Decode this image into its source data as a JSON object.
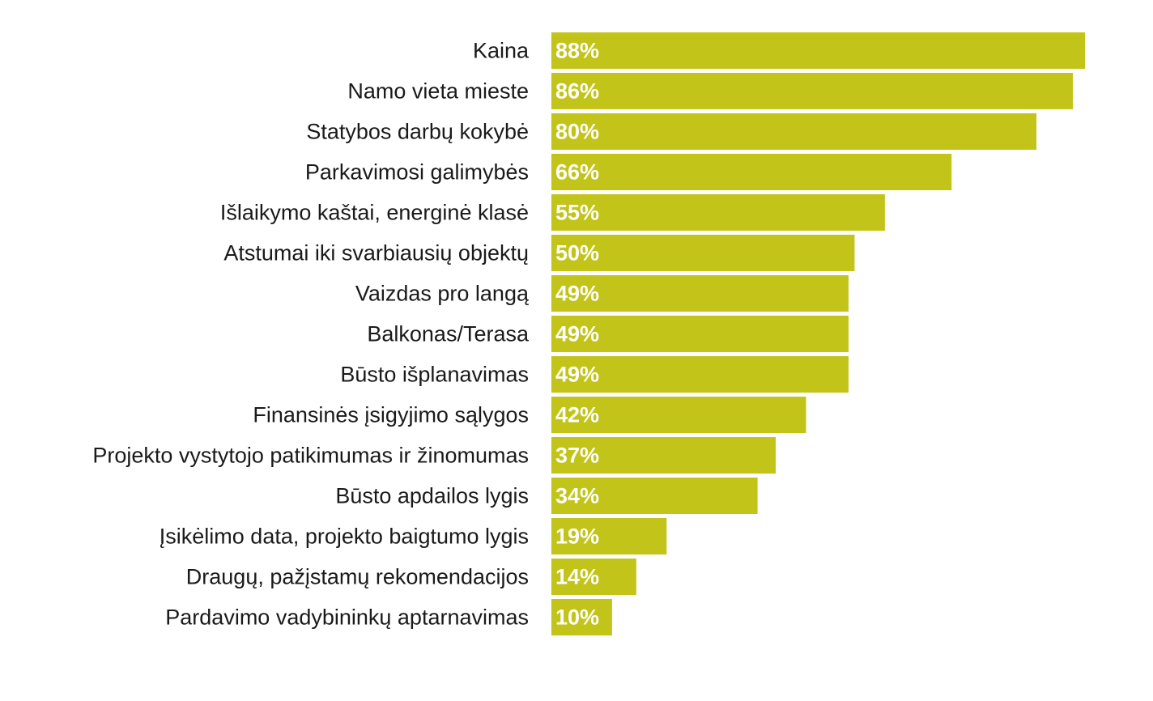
{
  "chart_data": {
    "type": "bar",
    "orientation": "horizontal",
    "categories": [
      "Kaina",
      "Namo vieta mieste",
      "Statybos darbų kokybė",
      "Parkavimosi galimybės",
      "Išlaikymo kaštai, energinė klasė",
      "Atstumai iki svarbiausių objektų",
      "Vaizdas pro langą",
      "Balkonas/Terasa",
      "Būsto išplanavimas",
      "Finansinės įsigyjimo sąlygos",
      "Projekto vystytojo patikimumas ir žinomumas",
      "Būsto apdailos lygis",
      "Įsikėlimo data, projekto baigtumo lygis",
      "Draugų, pažįstamų rekomendacijos",
      "Pardavimo vadybininkų aptarnavimas"
    ],
    "values": [
      88,
      86,
      80,
      66,
      55,
      50,
      49,
      49,
      49,
      42,
      37,
      34,
      19,
      14,
      10
    ],
    "value_labels": [
      "88%",
      "86%",
      "80%",
      "66%",
      "55%",
      "50%",
      "49%",
      "49%",
      "49%",
      "42%",
      "37%",
      "34%",
      "19%",
      "14%",
      "10%"
    ],
    "unit": "%",
    "xlim": [
      0,
      88
    ],
    "bar_color": "#c2c41a",
    "value_label_color": "#ffffff",
    "grid": false,
    "legend": "none",
    "title": "",
    "xlabel": "",
    "ylabel": ""
  }
}
